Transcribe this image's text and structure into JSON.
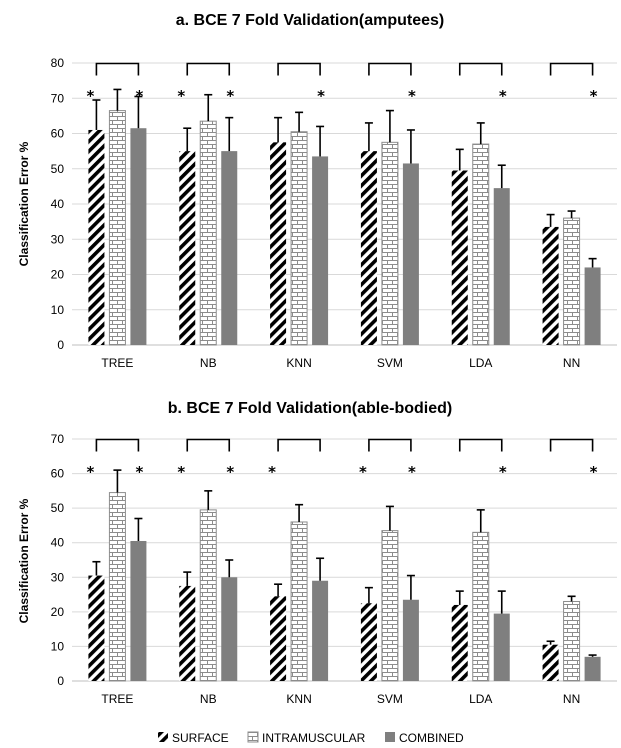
{
  "legend": [
    "SURFACE",
    "INTRAMUSCULAR",
    "COMBINED"
  ],
  "colors": {
    "surface": "#000000",
    "intramuscular": "#8c8c8c",
    "combined": "#7f7f7f",
    "grid": "#d9d9d9"
  },
  "chart_data": [
    {
      "type": "bar",
      "title": "a. BCE  7 Fold Validation(amputees)",
      "ylabel": "Classification Error %",
      "xlabel": "",
      "ylim": [
        0,
        80
      ],
      "yticks": [
        0,
        10,
        20,
        30,
        40,
        50,
        60,
        70,
        80
      ],
      "grid": true,
      "categories": [
        "TREE",
        "NB",
        "KNN",
        "SVM",
        "LDA",
        "NN"
      ],
      "series": [
        {
          "name": "SURFACE",
          "values": [
            61,
            55,
            57.5,
            55,
            49.5,
            33.5
          ],
          "errors": [
            8.5,
            6.5,
            7,
            8,
            6,
            3.5
          ]
        },
        {
          "name": "INTRAMUSCULAR",
          "values": [
            66.5,
            63.5,
            60.5,
            57.5,
            57,
            36
          ],
          "errors": [
            6,
            7.5,
            5.5,
            9,
            6,
            2
          ]
        },
        {
          "name": "COMBINED",
          "values": [
            61.5,
            55,
            53.5,
            51.5,
            44.5,
            22
          ],
          "errors": [
            9,
            9.5,
            8.5,
            9.5,
            6.5,
            2.5
          ]
        }
      ],
      "significance": "*",
      "stars": [
        [
          true,
          true
        ],
        [
          true,
          true
        ],
        [
          false,
          true
        ],
        [
          false,
          true
        ],
        [
          false,
          true
        ],
        [
          false,
          true
        ]
      ]
    },
    {
      "type": "bar",
      "title": "b. BCE  7 Fold Validation(able-bodied)",
      "ylabel": "Classification Error %",
      "xlabel": "",
      "ylim": [
        0,
        70
      ],
      "yticks": [
        0,
        10,
        20,
        30,
        40,
        50,
        60,
        70
      ],
      "grid": true,
      "categories": [
        "TREE",
        "NB",
        "KNN",
        "SVM",
        "LDA",
        "NN"
      ],
      "series": [
        {
          "name": "SURFACE",
          "values": [
            30.5,
            27.5,
            24.5,
            22.5,
            22,
            10.5
          ],
          "errors": [
            4,
            4,
            3.5,
            4.5,
            4,
            1
          ]
        },
        {
          "name": "INTRAMUSCULAR",
          "values": [
            54.5,
            49.5,
            46,
            43.5,
            43,
            23
          ],
          "errors": [
            6.5,
            5.5,
            5,
            7,
            6.5,
            1.5
          ]
        },
        {
          "name": "COMBINED",
          "values": [
            40.5,
            30,
            29,
            23.5,
            19.5,
            7
          ],
          "errors": [
            6.5,
            5,
            6.5,
            7,
            6.5,
            0.5
          ]
        }
      ],
      "significance": "*",
      "stars": [
        [
          true,
          true
        ],
        [
          true,
          true
        ],
        [
          true,
          false
        ],
        [
          true,
          true
        ],
        [
          false,
          true
        ],
        [
          false,
          true
        ]
      ]
    }
  ]
}
